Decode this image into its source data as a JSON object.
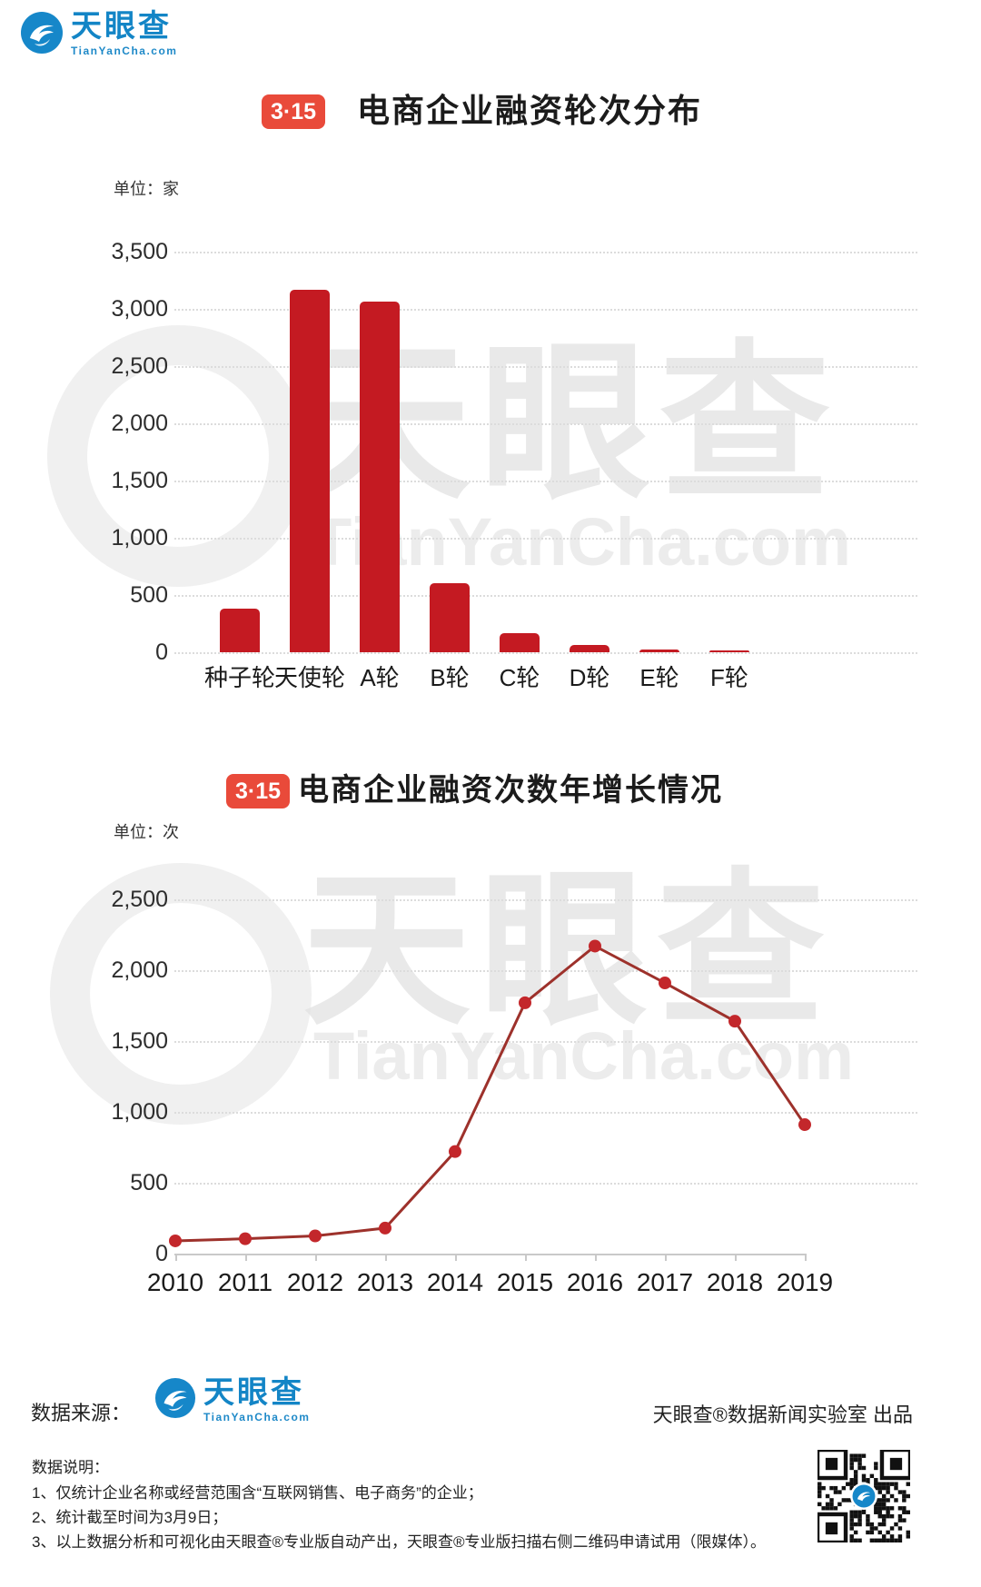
{
  "brand": {
    "name": "天眼查",
    "domain": "TianYanCha.com",
    "blue": "#1385c6"
  },
  "badge": {
    "label": "3·15",
    "color": "#e94a3a"
  },
  "footer": {
    "source_label": "数据来源：",
    "credit": "天眼查®数据新闻实验室 出品",
    "notes_heading": "数据说明：",
    "notes": [
      "1、仅统计企业名称或经营范围含“互联网销售、电子商务”的企业；",
      "2、统计截至时间为3月9日；",
      "3、以上数据分析和可视化由天眼查®专业版自动产出，天眼查®专业版扫描右侧二维码申请试用（限媒体）。"
    ]
  },
  "chart_data": [
    {
      "type": "bar",
      "title": "电商企业融资轮次分布",
      "unit_label": "单位：家",
      "ylabel": "家",
      "categories": [
        "种子轮",
        "天使轮",
        "A轮",
        "B轮",
        "C轮",
        "D轮",
        "E轮",
        "F轮"
      ],
      "values": [
        380,
        3170,
        3060,
        600,
        165,
        60,
        25,
        10
      ],
      "ylim": [
        0,
        3500
      ],
      "ytick_step": 500,
      "ytick_labels": [
        "0",
        "500",
        "1,000",
        "1,500",
        "2,000",
        "2,500",
        "3,000",
        "3,500"
      ],
      "grid": "horizontal-dotted",
      "legend": "none",
      "bar_color": "#c41a22"
    },
    {
      "type": "line",
      "title": "电商企业融资次数年增长情况",
      "unit_label": "单位：次",
      "ylabel": "次",
      "x": [
        2010,
        2011,
        2012,
        2013,
        2014,
        2015,
        2016,
        2017,
        2018,
        2019
      ],
      "values": [
        90,
        105,
        125,
        180,
        720,
        1770,
        2170,
        1910,
        1640,
        910
      ],
      "ylim": [
        0,
        2500
      ],
      "ytick_step": 500,
      "ytick_labels": [
        "0",
        "500",
        "1,000",
        "1,500",
        "2,000",
        "2,500"
      ],
      "grid": "horizontal-dotted",
      "legend": "none",
      "line_color": "#9d312b",
      "point_color": "#c3272b"
    }
  ]
}
